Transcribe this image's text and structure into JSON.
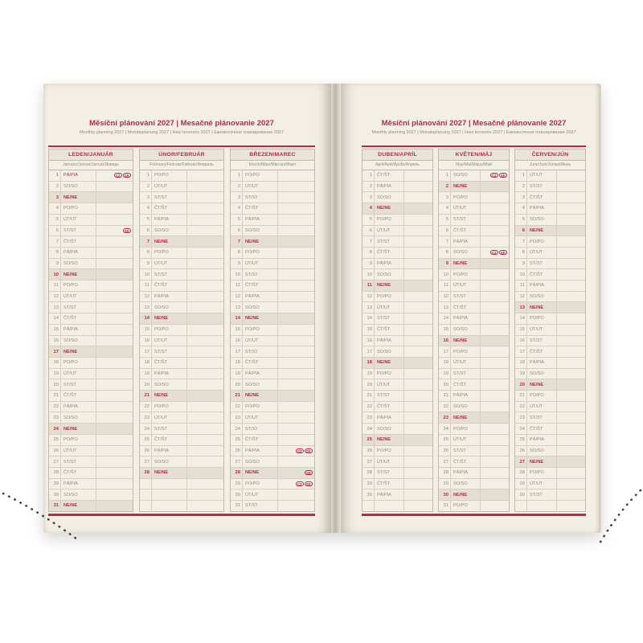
{
  "colors": {
    "accent": "#bc2649",
    "muted": "#93897b",
    "page_bg": "#f4efe4",
    "header_bg": "#eae4d6",
    "sunday_bg": "#e5dfd1",
    "row_line": "#d8cfc0",
    "outer_line": "#c3b9aa"
  },
  "spread": {
    "title": "Měsíční plánování 2027 | Mesačné plánovanie 2027",
    "subtitle": "Monthly planning 2027 | Monatsplanung 2027 | Havi tervezés 2027 | Ежемесячное планирование 2027",
    "pages": [
      {
        "months": [
          {
            "name": "LEDEN/JANUÁR",
            "intl": "January/Januar/Január/Январь",
            "days": [
              {
                "n": "1",
                "d": "PÁ/PIA",
                "t": "hol",
                "b": [
                  "CZ",
                  "SK"
                ]
              },
              {
                "n": "2",
                "d": "SO/SO"
              },
              {
                "n": "3",
                "d": "NE/NE",
                "t": "sun"
              },
              {
                "n": "4",
                "d": "PO/PO"
              },
              {
                "n": "5",
                "d": "ÚT/UT"
              },
              {
                "n": "6",
                "d": "ST/ST",
                "b": [
                  "SK"
                ]
              },
              {
                "n": "7",
                "d": "ČT/ŠT"
              },
              {
                "n": "8",
                "d": "PÁ/PIA"
              },
              {
                "n": "9",
                "d": "SO/SO"
              },
              {
                "n": "10",
                "d": "NE/NE",
                "t": "sun"
              },
              {
                "n": "11",
                "d": "PO/PO"
              },
              {
                "n": "12",
                "d": "ÚT/UT"
              },
              {
                "n": "13",
                "d": "ST/ST"
              },
              {
                "n": "14",
                "d": "ČT/ŠT"
              },
              {
                "n": "15",
                "d": "PÁ/PIA"
              },
              {
                "n": "16",
                "d": "SO/SO"
              },
              {
                "n": "17",
                "d": "NE/NE",
                "t": "sun"
              },
              {
                "n": "18",
                "d": "PO/PO"
              },
              {
                "n": "19",
                "d": "ÚT/UT"
              },
              {
                "n": "20",
                "d": "ST/ST"
              },
              {
                "n": "21",
                "d": "ČT/ŠT"
              },
              {
                "n": "22",
                "d": "PÁ/PIA"
              },
              {
                "n": "23",
                "d": "SO/SO"
              },
              {
                "n": "24",
                "d": "NE/NE",
                "t": "sun"
              },
              {
                "n": "25",
                "d": "PO/PO"
              },
              {
                "n": "26",
                "d": "ÚT/UT"
              },
              {
                "n": "27",
                "d": "ST/ST"
              },
              {
                "n": "28",
                "d": "ČT/ŠT"
              },
              {
                "n": "29",
                "d": "PÁ/PIA"
              },
              {
                "n": "30",
                "d": "SO/SO"
              },
              {
                "n": "31",
                "d": "NE/NE",
                "t": "sun"
              }
            ]
          },
          {
            "name": "ÚNOR/FEBRUÁR",
            "intl": "February/Februar/Február/Февраль",
            "days": [
              {
                "n": "1",
                "d": "PO/PO"
              },
              {
                "n": "2",
                "d": "ÚT/UT"
              },
              {
                "n": "3",
                "d": "ST/ST"
              },
              {
                "n": "4",
                "d": "ČT/ŠT"
              },
              {
                "n": "5",
                "d": "PÁ/PIA"
              },
              {
                "n": "6",
                "d": "SO/SO"
              },
              {
                "n": "7",
                "d": "NE/NE",
                "t": "sun"
              },
              {
                "n": "8",
                "d": "PO/PO"
              },
              {
                "n": "9",
                "d": "ÚT/UT"
              },
              {
                "n": "10",
                "d": "ST/ST"
              },
              {
                "n": "11",
                "d": "ČT/ŠT"
              },
              {
                "n": "12",
                "d": "PÁ/PIA"
              },
              {
                "n": "13",
                "d": "SO/SO"
              },
              {
                "n": "14",
                "d": "NE/NE",
                "t": "sun"
              },
              {
                "n": "15",
                "d": "PO/PO"
              },
              {
                "n": "16",
                "d": "ÚT/UT"
              },
              {
                "n": "17",
                "d": "ST/ST"
              },
              {
                "n": "18",
                "d": "ČT/ŠT"
              },
              {
                "n": "19",
                "d": "PÁ/PIA"
              },
              {
                "n": "20",
                "d": "SO/SO"
              },
              {
                "n": "21",
                "d": "NE/NE",
                "t": "sun"
              },
              {
                "n": "22",
                "d": "PO/PO"
              },
              {
                "n": "23",
                "d": "ÚT/UT"
              },
              {
                "n": "24",
                "d": "ST/ST"
              },
              {
                "n": "25",
                "d": "ČT/ŠT"
              },
              {
                "n": "26",
                "d": "PÁ/PIA"
              },
              {
                "n": "27",
                "d": "SO/SO"
              },
              {
                "n": "28",
                "d": "NE/NE",
                "t": "sun"
              },
              {},
              {},
              {}
            ]
          },
          {
            "name": "BŘEZEN/MAREC",
            "intl": "March/März/Március/Март",
            "days": [
              {
                "n": "1",
                "d": "PO/PO"
              },
              {
                "n": "2",
                "d": "ÚT/UT"
              },
              {
                "n": "3",
                "d": "ST/ST"
              },
              {
                "n": "4",
                "d": "ČT/ŠT"
              },
              {
                "n": "5",
                "d": "PÁ/PIA"
              },
              {
                "n": "6",
                "d": "SO/SO"
              },
              {
                "n": "7",
                "d": "NE/NE",
                "t": "sun"
              },
              {
                "n": "8",
                "d": "PO/PO"
              },
              {
                "n": "9",
                "d": "ÚT/UT"
              },
              {
                "n": "10",
                "d": "ST/ST"
              },
              {
                "n": "11",
                "d": "ČT/ŠT"
              },
              {
                "n": "12",
                "d": "PÁ/PIA"
              },
              {
                "n": "13",
                "d": "SO/SO"
              },
              {
                "n": "14",
                "d": "NE/NE",
                "t": "sun"
              },
              {
                "n": "15",
                "d": "PO/PO"
              },
              {
                "n": "16",
                "d": "ÚT/UT"
              },
              {
                "n": "17",
                "d": "ST/ST"
              },
              {
                "n": "18",
                "d": "ČT/ŠT"
              },
              {
                "n": "19",
                "d": "PÁ/PIA"
              },
              {
                "n": "20",
                "d": "SO/SO"
              },
              {
                "n": "21",
                "d": "NE/NE",
                "t": "sun"
              },
              {
                "n": "22",
                "d": "PO/PO"
              },
              {
                "n": "23",
                "d": "ÚT/UT"
              },
              {
                "n": "24",
                "d": "ST/ST"
              },
              {
                "n": "25",
                "d": "ČT/ŠT"
              },
              {
                "n": "26",
                "d": "PÁ/PIA",
                "b": [
                  "CZ",
                  "SK"
                ]
              },
              {
                "n": "27",
                "d": "SO/SO"
              },
              {
                "n": "28",
                "d": "NE/NE",
                "t": "sun",
                "b": [
                  "SK"
                ]
              },
              {
                "n": "29",
                "d": "PO/PO",
                "b": [
                  "CZ",
                  "SK"
                ]
              },
              {
                "n": "30",
                "d": "ÚT/UT"
              },
              {
                "n": "31",
                "d": "ST/ST"
              }
            ]
          }
        ]
      },
      {
        "months": [
          {
            "name": "DUBEN/APRÍL",
            "intl": "April/April/Április/Апрель",
            "days": [
              {
                "n": "1",
                "d": "ČT/ŠT"
              },
              {
                "n": "2",
                "d": "PÁ/PIA"
              },
              {
                "n": "3",
                "d": "SO/SO"
              },
              {
                "n": "4",
                "d": "NE/NE",
                "t": "sun"
              },
              {
                "n": "5",
                "d": "PO/PO"
              },
              {
                "n": "6",
                "d": "ÚT/UT"
              },
              {
                "n": "7",
                "d": "ST/ST"
              },
              {
                "n": "8",
                "d": "ČT/ŠT"
              },
              {
                "n": "9",
                "d": "PÁ/PIA"
              },
              {
                "n": "10",
                "d": "SO/SO"
              },
              {
                "n": "11",
                "d": "NE/NE",
                "t": "sun"
              },
              {
                "n": "12",
                "d": "PO/PO"
              },
              {
                "n": "13",
                "d": "ÚT/UT"
              },
              {
                "n": "14",
                "d": "ST/ST"
              },
              {
                "n": "15",
                "d": "ČT/ŠT"
              },
              {
                "n": "16",
                "d": "PÁ/PIA"
              },
              {
                "n": "17",
                "d": "SO/SO"
              },
              {
                "n": "18",
                "d": "NE/NE",
                "t": "sun"
              },
              {
                "n": "19",
                "d": "PO/PO"
              },
              {
                "n": "20",
                "d": "ÚT/UT"
              },
              {
                "n": "21",
                "d": "ST/ST"
              },
              {
                "n": "22",
                "d": "ČT/ŠT"
              },
              {
                "n": "23",
                "d": "PÁ/PIA"
              },
              {
                "n": "24",
                "d": "SO/SO"
              },
              {
                "n": "25",
                "d": "NE/NE",
                "t": "sun"
              },
              {
                "n": "26",
                "d": "PO/PO"
              },
              {
                "n": "27",
                "d": "ÚT/UT"
              },
              {
                "n": "28",
                "d": "ST/ST"
              },
              {
                "n": "29",
                "d": "ČT/ŠT"
              },
              {
                "n": "30",
                "d": "PÁ/PIA"
              },
              {}
            ]
          },
          {
            "name": "KVĚTEN/MÁJ",
            "intl": "May/Mai/Május/Май",
            "days": [
              {
                "n": "1",
                "d": "SO/SO",
                "b": [
                  "CZ",
                  "SK"
                ]
              },
              {
                "n": "2",
                "d": "NE/NE",
                "t": "sun"
              },
              {
                "n": "3",
                "d": "PO/PO"
              },
              {
                "n": "4",
                "d": "ÚT/UT"
              },
              {
                "n": "5",
                "d": "ST/ST"
              },
              {
                "n": "6",
                "d": "ČT/ŠT"
              },
              {
                "n": "7",
                "d": "PÁ/PIA"
              },
              {
                "n": "8",
                "d": "SO/SO",
                "b": [
                  "CZ",
                  "SK"
                ]
              },
              {
                "n": "9",
                "d": "NE/NE",
                "t": "sun"
              },
              {
                "n": "10",
                "d": "PO/PO"
              },
              {
                "n": "11",
                "d": "ÚT/UT"
              },
              {
                "n": "12",
                "d": "ST/ST"
              },
              {
                "n": "13",
                "d": "ČT/ŠT"
              },
              {
                "n": "14",
                "d": "PÁ/PIA"
              },
              {
                "n": "15",
                "d": "SO/SO"
              },
              {
                "n": "16",
                "d": "NE/NE",
                "t": "sun"
              },
              {
                "n": "17",
                "d": "PO/PO"
              },
              {
                "n": "18",
                "d": "ÚT/UT"
              },
              {
                "n": "19",
                "d": "ST/ST"
              },
              {
                "n": "20",
                "d": "ČT/ŠT"
              },
              {
                "n": "21",
                "d": "PÁ/PIA"
              },
              {
                "n": "22",
                "d": "SO/SO"
              },
              {
                "n": "23",
                "d": "NE/NE",
                "t": "sun"
              },
              {
                "n": "24",
                "d": "PO/PO"
              },
              {
                "n": "25",
                "d": "ÚT/UT"
              },
              {
                "n": "26",
                "d": "ST/ST"
              },
              {
                "n": "27",
                "d": "ČT/ŠT"
              },
              {
                "n": "28",
                "d": "PÁ/PIA"
              },
              {
                "n": "29",
                "d": "SO/SO"
              },
              {
                "n": "30",
                "d": "NE/NE",
                "t": "sun"
              },
              {
                "n": "31",
                "d": "PO/PO"
              }
            ]
          },
          {
            "name": "ČERVEN/JÚN",
            "intl": "June/Juni/Június/Июнь",
            "days": [
              {
                "n": "1",
                "d": "ÚT/UT"
              },
              {
                "n": "2",
                "d": "ST/ST"
              },
              {
                "n": "3",
                "d": "ČT/ŠT"
              },
              {
                "n": "4",
                "d": "PÁ/PIA"
              },
              {
                "n": "5",
                "d": "SO/SO"
              },
              {
                "n": "6",
                "d": "NE/NE",
                "t": "sun"
              },
              {
                "n": "7",
                "d": "PO/PO"
              },
              {
                "n": "8",
                "d": "ÚT/UT"
              },
              {
                "n": "9",
                "d": "ST/ST"
              },
              {
                "n": "10",
                "d": "ČT/ŠT"
              },
              {
                "n": "11",
                "d": "PÁ/PIA"
              },
              {
                "n": "12",
                "d": "SO/SO"
              },
              {
                "n": "13",
                "d": "NE/NE",
                "t": "sun"
              },
              {
                "n": "14",
                "d": "PO/PO"
              },
              {
                "n": "15",
                "d": "ÚT/UT"
              },
              {
                "n": "16",
                "d": "ST/ST"
              },
              {
                "n": "17",
                "d": "ČT/ŠT"
              },
              {
                "n": "18",
                "d": "PÁ/PIA"
              },
              {
                "n": "19",
                "d": "SO/SO"
              },
              {
                "n": "20",
                "d": "NE/NE",
                "t": "sun"
              },
              {
                "n": "21",
                "d": "PO/PO"
              },
              {
                "n": "22",
                "d": "ÚT/UT"
              },
              {
                "n": "23",
                "d": "ST/ST"
              },
              {
                "n": "24",
                "d": "ČT/ŠT"
              },
              {
                "n": "25",
                "d": "PÁ/PIA"
              },
              {
                "n": "26",
                "d": "SO/SO"
              },
              {
                "n": "27",
                "d": "NE/NE",
                "t": "sun"
              },
              {
                "n": "28",
                "d": "PO/PO"
              },
              {
                "n": "29",
                "d": "ÚT/UT"
              },
              {
                "n": "30",
                "d": "ST/ST"
              },
              {}
            ]
          }
        ]
      }
    ]
  }
}
